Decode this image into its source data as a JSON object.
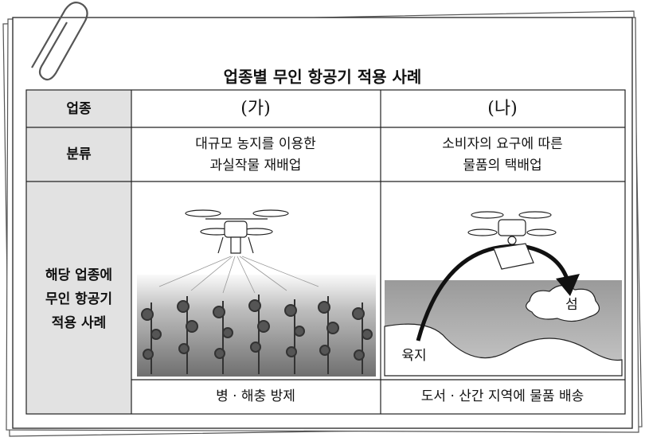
{
  "title": "업종별 무인 항공기 적용 사례",
  "table": {
    "header": [
      "업종",
      "(가)",
      "(나)"
    ],
    "rows": [
      {
        "label": "분류",
        "cells": [
          [
            "대규모 농지를 이용한",
            "과실작물 재배업"
          ],
          [
            "소비자의 요구에 따른",
            "물품의 택배업"
          ]
        ]
      },
      {
        "label": [
          "해당 업종에",
          "무인 항공기",
          "적용 사례"
        ],
        "captions": [
          "병 · 해충 방제",
          "도서 · 산간 지역에 물품 배송"
        ]
      }
    ]
  },
  "illustration": {
    "island": "섬",
    "land": "육지"
  }
}
